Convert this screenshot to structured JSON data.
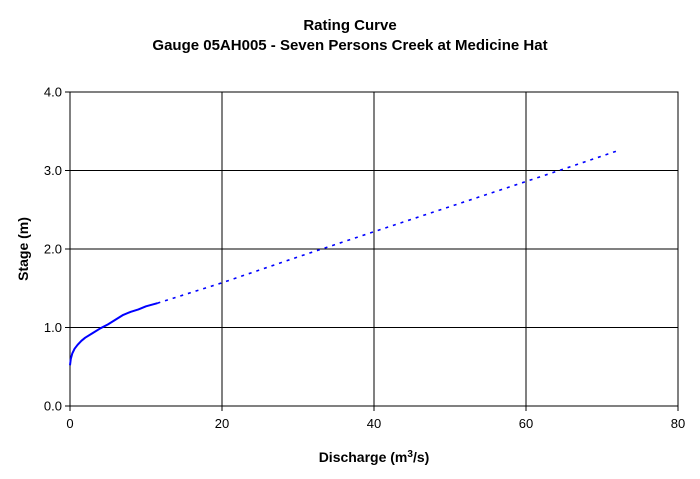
{
  "chart_data": {
    "type": "line",
    "title": "Rating Curve",
    "subtitle": "Gauge 05AH005 - Seven Persons Creek at Medicine Hat",
    "xlabel": "Discharge (m³/s)",
    "ylabel": "Stage (m)",
    "xlim": [
      0,
      80
    ],
    "ylim": [
      0,
      4
    ],
    "x_ticks": [
      "0",
      "20",
      "40",
      "60",
      "80"
    ],
    "y_ticks": [
      "0.0",
      "1.0",
      "2.0",
      "3.0",
      "4.0"
    ],
    "grid": true,
    "series": [
      {
        "style": "solid",
        "color": "#0000ff",
        "x": [
          0,
          0.1,
          0.3,
          0.6,
          1.0,
          1.5,
          2.0,
          3.0,
          4.0,
          5.0,
          6.0,
          7.0,
          8.0,
          9.0,
          10.0,
          11.5
        ],
        "y": [
          0.52,
          0.6,
          0.67,
          0.73,
          0.78,
          0.83,
          0.87,
          0.93,
          0.99,
          1.04,
          1.1,
          1.16,
          1.2,
          1.23,
          1.27,
          1.31
        ]
      },
      {
        "style": "dotted",
        "color": "#0000ff",
        "x": [
          11.5,
          20,
          30,
          40,
          50,
          60,
          65,
          72
        ],
        "y": [
          1.31,
          1.57,
          1.9,
          2.22,
          2.54,
          2.86,
          3.02,
          3.25
        ]
      }
    ]
  }
}
